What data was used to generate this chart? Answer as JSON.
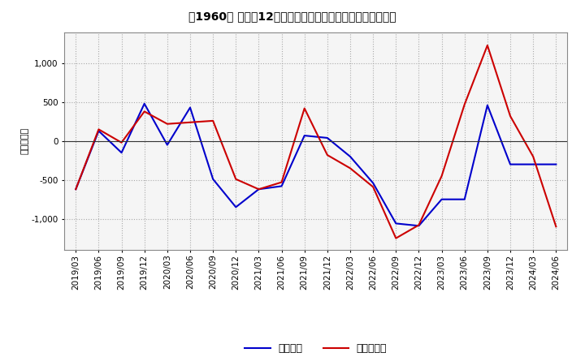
{
  "title": "［1960］ 利益だ12か月移動合計の対前年同期増減額の推移",
  "ylabel": "（百万円）",
  "x_labels": [
    "2019/03",
    "2019/06",
    "2019/09",
    "2019/12",
    "2020/03",
    "2020/06",
    "2020/09",
    "2020/12",
    "2021/03",
    "2021/06",
    "2021/09",
    "2021/12",
    "2022/03",
    "2022/06",
    "2022/09",
    "2022/12",
    "2023/03",
    "2023/06",
    "2023/09",
    "2023/12",
    "2024/03",
    "2024/06"
  ],
  "keijo_rieki": [
    -620,
    130,
    -150,
    480,
    -50,
    430,
    -490,
    -850,
    -620,
    -580,
    70,
    40,
    -200,
    -540,
    -1060,
    -1090,
    -750,
    -750,
    460,
    -300,
    -300,
    -300
  ],
  "touki_jun_rieki": [
    -620,
    150,
    -20,
    380,
    220,
    240,
    260,
    -490,
    -620,
    -530,
    420,
    -180,
    -350,
    -590,
    -1250,
    -1080,
    -450,
    470,
    1230,
    320,
    -200,
    -1100
  ],
  "keijo_color": "#0000cc",
  "touki_color": "#cc0000",
  "ylim": [
    -1400,
    1400
  ],
  "yticks": [
    -1000,
    -500,
    0,
    500,
    1000
  ],
  "bg_color": "#ffffff",
  "plot_bg_color": "#f5f5f5",
  "grid_color": "#aaaaaa",
  "legend_keijo": "経常利益",
  "legend_touki": "当期純利益"
}
